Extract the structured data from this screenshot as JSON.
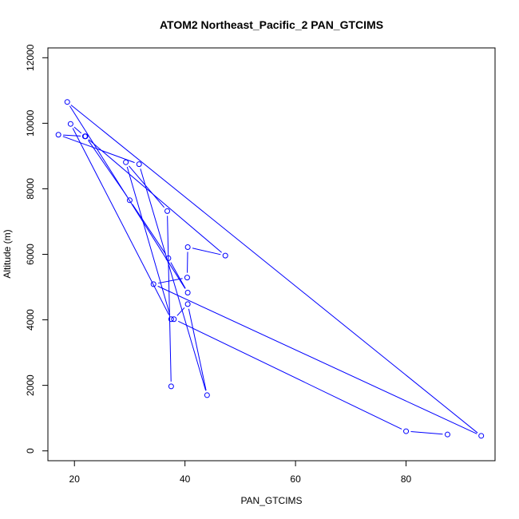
{
  "chart_data": {
    "type": "line",
    "title": "ATOM2 Northeast_Pacific_2 PAN_GTCIMS",
    "xlabel": "PAN_GTCIMS",
    "ylabel": "Altitude (m)",
    "xlim": [
      15.2,
      96.1
    ],
    "ylim": [
      -300,
      12300
    ],
    "x_ticks": [
      20,
      40,
      60,
      80
    ],
    "y_ticks": [
      0,
      2000,
      4000,
      6000,
      8000,
      10000,
      12000
    ],
    "grid": false,
    "marker": "open-circle",
    "line_color": "#0000ff",
    "series": [
      {
        "x": [
          87.5,
          80.0,
          38.0,
          40.5,
          44.0,
          31.7,
          17.1,
          22.0,
          30.0,
          37.0,
          40.5,
          18.7,
          93.6,
          34.3,
          40.4,
          40.5,
          47.3,
          21.9,
          19.3,
          37.5,
          29.3,
          36.8,
          37.5
        ],
        "y": [
          500,
          600,
          4020,
          4480,
          1700,
          8750,
          9650,
          9600,
          7650,
          5880,
          4830,
          10650,
          460,
          5090,
          5290,
          6220,
          5960,
          9600,
          9980,
          4020,
          8810,
          7320,
          1970
        ]
      }
    ]
  }
}
